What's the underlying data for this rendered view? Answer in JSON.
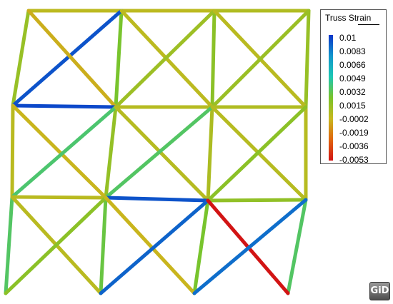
{
  "legend": {
    "title": "Truss Strain",
    "labels": [
      "0.01",
      "0.0083",
      "0.0066",
      "0.0049",
      "0.0032",
      "0.0015",
      "-0.0002",
      "-0.0019",
      "-0.0036",
      "-0.0053"
    ],
    "gradient_colors": [
      "#0b35c9",
      "#1196cc",
      "#1cc7b4",
      "#7ac42a",
      "#c8b81e",
      "#e0650e",
      "#d21414"
    ]
  },
  "mesh": {
    "members": [
      {
        "id": "top-chord-1",
        "strain": 0.0002
      },
      {
        "id": "top-chord-2",
        "strain": 0.0002
      },
      {
        "id": "top-chord-3",
        "strain": 0.0006
      },
      {
        "id": "top-right-post",
        "strain": 0.0014
      },
      {
        "id": "left-post-upper",
        "strain": 0.0014
      },
      {
        "id": "post-a-upper",
        "strain": 0.0024
      },
      {
        "id": "post-b-upper",
        "strain": 0.0018
      },
      {
        "id": "bay-1-upper-diag-up",
        "strain": 0.0092
      },
      {
        "id": "bay-1-upper-diag-down",
        "strain": -0.0005
      },
      {
        "id": "bay-2-upper-diag-down",
        "strain": 0.0002
      },
      {
        "id": "bay-2-upper-diag-up",
        "strain": 0.0012
      },
      {
        "id": "bay-3-upper-diag-down",
        "strain": 0.0003
      },
      {
        "id": "bay-3-upper-diag-up",
        "strain": 0.0013
      },
      {
        "id": "mid-chord-1",
        "strain": 0.0095
      },
      {
        "id": "mid-chord-2",
        "strain": 0.0004
      },
      {
        "id": "mid-chord-3",
        "strain": 0.0006
      },
      {
        "id": "left-post-mid",
        "strain": 0.0003
      },
      {
        "id": "post-a-mid",
        "strain": 0.0015
      },
      {
        "id": "post-b-mid",
        "strain": 0.0007
      },
      {
        "id": "right-post-mid",
        "strain": 0.0004
      },
      {
        "id": "bay-1-mid-diag-down",
        "strain": -0.0003
      },
      {
        "id": "bay-1-mid-diag-up",
        "strain": 0.0036
      },
      {
        "id": "bay-2-mid-diag-down",
        "strain": 0.0004
      },
      {
        "id": "bay-2-mid-diag-up",
        "strain": 0.0034
      },
      {
        "id": "bay-3-mid-diag-down",
        "strain": 0.0004
      },
      {
        "id": "bay-3-mid-diag-up",
        "strain": 0.0018
      },
      {
        "id": "lower-chord-1",
        "strain": 0.0003
      },
      {
        "id": "lower-chord-2",
        "strain": 0.0092
      },
      {
        "id": "lower-chord-3",
        "strain": 0.0016
      },
      {
        "id": "left-post-lower",
        "strain": 0.0034
      },
      {
        "id": "post-a-lower",
        "strain": 0.0028
      },
      {
        "id": "post-b-lower",
        "strain": 0.0024
      },
      {
        "id": "right-post-lower",
        "strain": 0.0034
      },
      {
        "id": "bay-1-lower-diag-down",
        "strain": 0.0003
      },
      {
        "id": "bay-1-lower-diag-up",
        "strain": 0.0018
      },
      {
        "id": "bay-2-lower-diag-down",
        "strain": -0.0003
      },
      {
        "id": "bay-2-lower-diag-up",
        "strain": 0.0088
      },
      {
        "id": "bay-3-lower-diag-down",
        "strain": -0.0053
      },
      {
        "id": "bay-3-lower-diag-up",
        "strain": 0.0085
      }
    ]
  },
  "logo": {
    "text": "GiD"
  }
}
